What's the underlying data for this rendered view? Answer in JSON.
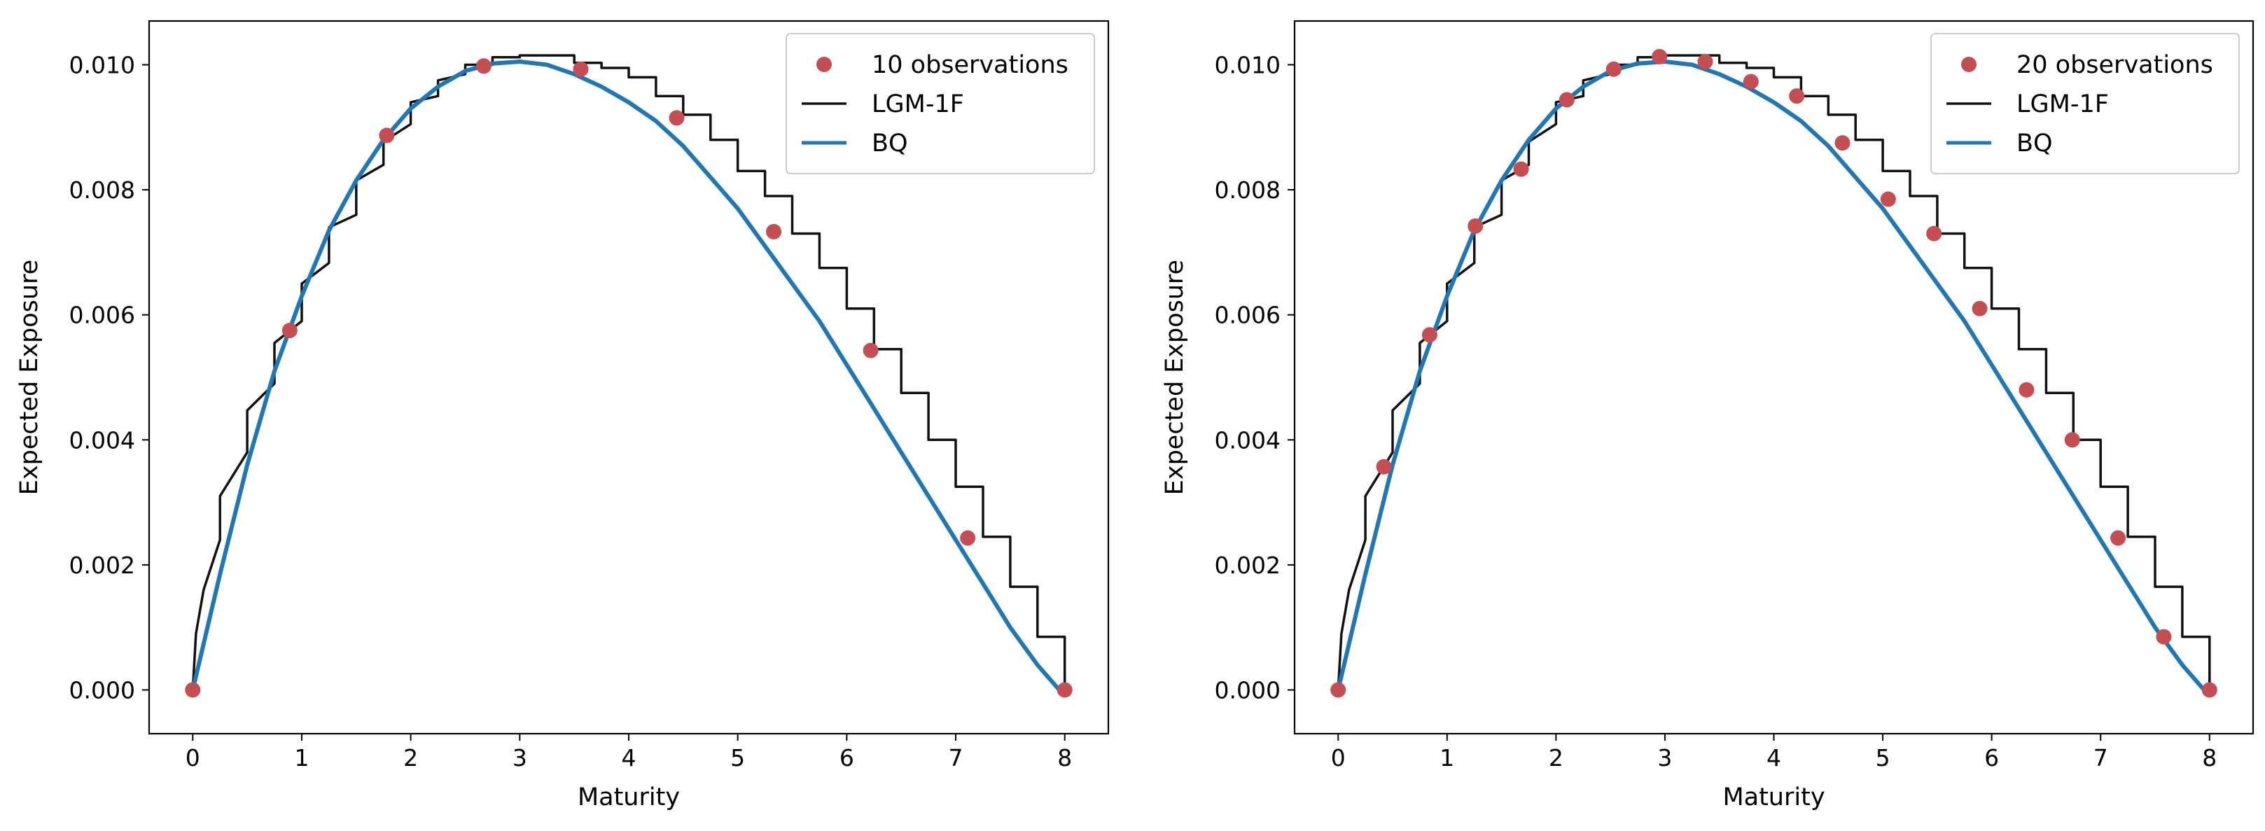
{
  "colors": {
    "observations": "#c44e52",
    "lgm": "#111111",
    "bq": "#1f77b4"
  },
  "chart_data": [
    {
      "type": "line",
      "xlabel": "Maturity",
      "ylabel": "Expected Exposure",
      "xlim": [
        -0.4,
        8.4
      ],
      "ylim": [
        -0.0007,
        0.0107
      ],
      "xticks": [
        0,
        1,
        2,
        3,
        4,
        5,
        6,
        7,
        8
      ],
      "xtick_labels": [
        "0",
        "1",
        "2",
        "3",
        "4",
        "5",
        "6",
        "7",
        "8"
      ],
      "yticks": [
        0.0,
        0.002,
        0.004,
        0.006,
        0.008,
        0.01
      ],
      "ytick_labels": [
        "0.000",
        "0.002",
        "0.004",
        "0.006",
        "0.008",
        "0.010"
      ],
      "legend_position": "top-right",
      "series": [
        {
          "name": "10 observations",
          "kind": "scatter",
          "x": [
            0,
            0.89,
            1.78,
            2.67,
            3.56,
            4.44,
            5.33,
            6.22,
            7.11,
            8.0
          ],
          "y": [
            0.0,
            0.00575,
            0.00887,
            0.00998,
            0.00993,
            0.00915,
            0.00733,
            0.00543,
            0.00243,
            0.0
          ]
        },
        {
          "name": "LGM-1F",
          "kind": "step",
          "x": [
            0,
            0.03,
            0.1,
            0.25,
            0.25,
            0.5,
            0.5,
            0.75,
            0.75,
            1.0,
            1.0,
            1.25,
            1.25,
            1.5,
            1.5,
            1.75,
            1.75,
            2.0,
            2.0,
            2.25,
            2.25,
            2.5,
            2.5,
            2.75,
            2.75,
            3.0,
            3.0,
            3.25,
            3.25,
            3.5,
            3.5,
            3.75,
            3.75,
            4.0,
            4.0,
            4.25,
            4.25,
            4.5,
            4.5,
            4.75,
            4.75,
            5.0,
            5.0,
            5.25,
            5.25,
            5.5,
            5.5,
            5.75,
            5.75,
            6.0,
            6.0,
            6.25,
            6.25,
            6.5,
            6.5,
            6.75,
            6.75,
            7.0,
            7.0,
            7.25,
            7.25,
            7.5,
            7.5,
            7.75,
            7.75,
            8.0,
            8.0
          ],
          "y": [
            0.0,
            0.0009,
            0.0016,
            0.0024,
            0.0031,
            0.0038,
            0.00447,
            0.0049,
            0.00555,
            0.0059,
            0.0065,
            0.00683,
            0.0074,
            0.0076,
            0.00815,
            0.0084,
            0.00877,
            0.00905,
            0.0094,
            0.0095,
            0.00975,
            0.00985,
            0.01,
            0.01,
            0.01012,
            0.01012,
            0.01015,
            0.01015,
            0.01015,
            0.01015,
            0.01003,
            0.01003,
            0.00995,
            0.00995,
            0.0098,
            0.0098,
            0.0095,
            0.0095,
            0.0092,
            0.0092,
            0.0088,
            0.0088,
            0.0083,
            0.0083,
            0.0079,
            0.0079,
            0.0073,
            0.0073,
            0.00675,
            0.00675,
            0.0061,
            0.0061,
            0.00545,
            0.00545,
            0.00475,
            0.00475,
            0.004,
            0.004,
            0.00325,
            0.00325,
            0.00245,
            0.00245,
            0.00165,
            0.00165,
            0.00085,
            0.00085,
            0.0
          ]
        },
        {
          "name": "BQ",
          "kind": "line",
          "x": [
            0,
            0.25,
            0.5,
            0.75,
            1.0,
            1.25,
            1.5,
            1.75,
            2.0,
            2.25,
            2.5,
            2.75,
            3.0,
            3.25,
            3.5,
            3.75,
            4.0,
            4.25,
            4.5,
            4.75,
            5.0,
            5.25,
            5.5,
            5.75,
            6.0,
            6.25,
            6.5,
            6.75,
            7.0,
            7.25,
            7.5,
            7.75,
            8.0
          ],
          "y": [
            0.0,
            0.00185,
            0.0036,
            0.0051,
            0.0063,
            0.00735,
            0.00815,
            0.0088,
            0.0093,
            0.00965,
            0.0099,
            0.01002,
            0.01005,
            0.01,
            0.00985,
            0.00965,
            0.0094,
            0.0091,
            0.0087,
            0.0082,
            0.0077,
            0.0071,
            0.0065,
            0.0059,
            0.0052,
            0.0045,
            0.0038,
            0.0031,
            0.0024,
            0.0017,
            0.001,
            0.0004,
            -0.0001
          ]
        }
      ]
    },
    {
      "type": "line",
      "xlabel": "Maturity",
      "ylabel": "Expected Exposure",
      "xlim": [
        -0.4,
        8.4
      ],
      "ylim": [
        -0.0007,
        0.0107
      ],
      "xticks": [
        0,
        1,
        2,
        3,
        4,
        5,
        6,
        7,
        8
      ],
      "xtick_labels": [
        "0",
        "1",
        "2",
        "3",
        "4",
        "5",
        "6",
        "7",
        "8"
      ],
      "yticks": [
        0.0,
        0.002,
        0.004,
        0.006,
        0.008,
        0.01
      ],
      "ytick_labels": [
        "0.000",
        "0.002",
        "0.004",
        "0.006",
        "0.008",
        "0.010"
      ],
      "legend_position": "top-right",
      "series": [
        {
          "name": "20 observations",
          "kind": "scatter",
          "x": [
            0,
            0.42,
            0.84,
            1.26,
            1.68,
            2.1,
            2.53,
            2.95,
            3.37,
            3.79,
            4.21,
            4.63,
            5.05,
            5.47,
            5.89,
            6.32,
            6.74,
            7.16,
            7.58,
            8.0
          ],
          "y": [
            0.0,
            0.00357,
            0.00568,
            0.00742,
            0.00833,
            0.00944,
            0.00993,
            0.01013,
            0.01005,
            0.00973,
            0.0095,
            0.00875,
            0.00785,
            0.0073,
            0.0061,
            0.0048,
            0.004,
            0.00243,
            0.00085,
            0.0
          ]
        },
        {
          "name": "LGM-1F",
          "kind": "step",
          "x": [
            0,
            0.03,
            0.1,
            0.25,
            0.25,
            0.5,
            0.5,
            0.75,
            0.75,
            1.0,
            1.0,
            1.25,
            1.25,
            1.5,
            1.5,
            1.75,
            1.75,
            2.0,
            2.0,
            2.25,
            2.25,
            2.5,
            2.5,
            2.75,
            2.75,
            3.0,
            3.0,
            3.25,
            3.25,
            3.5,
            3.5,
            3.75,
            3.75,
            4.0,
            4.0,
            4.25,
            4.25,
            4.5,
            4.5,
            4.75,
            4.75,
            5.0,
            5.0,
            5.25,
            5.25,
            5.5,
            5.5,
            5.75,
            5.75,
            6.0,
            6.0,
            6.25,
            6.25,
            6.5,
            6.5,
            6.75,
            6.75,
            7.0,
            7.0,
            7.25,
            7.25,
            7.5,
            7.5,
            7.75,
            7.75,
            8.0,
            8.0
          ],
          "y": [
            0.0,
            0.0009,
            0.0016,
            0.0024,
            0.0031,
            0.0038,
            0.00447,
            0.0049,
            0.00555,
            0.0059,
            0.0065,
            0.00683,
            0.0074,
            0.0076,
            0.00815,
            0.0084,
            0.00877,
            0.00905,
            0.0094,
            0.0095,
            0.00975,
            0.00985,
            0.01,
            0.01,
            0.01012,
            0.01012,
            0.01015,
            0.01015,
            0.01015,
            0.01015,
            0.01003,
            0.01003,
            0.00995,
            0.00995,
            0.0098,
            0.0098,
            0.0095,
            0.0095,
            0.0092,
            0.0092,
            0.0088,
            0.0088,
            0.0083,
            0.0083,
            0.0079,
            0.0079,
            0.0073,
            0.0073,
            0.00675,
            0.00675,
            0.0061,
            0.0061,
            0.00545,
            0.00545,
            0.00475,
            0.00475,
            0.004,
            0.004,
            0.00325,
            0.00325,
            0.00245,
            0.00245,
            0.00165,
            0.00165,
            0.00085,
            0.00085,
            0.0
          ]
        },
        {
          "name": "BQ",
          "kind": "line",
          "x": [
            0,
            0.25,
            0.5,
            0.75,
            1.0,
            1.25,
            1.5,
            1.75,
            2.0,
            2.25,
            2.5,
            2.75,
            3.0,
            3.25,
            3.5,
            3.75,
            4.0,
            4.25,
            4.5,
            4.75,
            5.0,
            5.25,
            5.5,
            5.75,
            6.0,
            6.25,
            6.5,
            6.75,
            7.0,
            7.25,
            7.5,
            7.75,
            8.0
          ],
          "y": [
            0.0,
            0.00185,
            0.0036,
            0.0051,
            0.0063,
            0.00735,
            0.00815,
            0.0088,
            0.0093,
            0.00965,
            0.0099,
            0.01002,
            0.01005,
            0.01,
            0.00985,
            0.00965,
            0.0094,
            0.0091,
            0.0087,
            0.0082,
            0.0077,
            0.0071,
            0.0065,
            0.0059,
            0.0052,
            0.0045,
            0.0038,
            0.0031,
            0.0024,
            0.0017,
            0.001,
            0.0004,
            -0.0001
          ]
        }
      ]
    }
  ]
}
